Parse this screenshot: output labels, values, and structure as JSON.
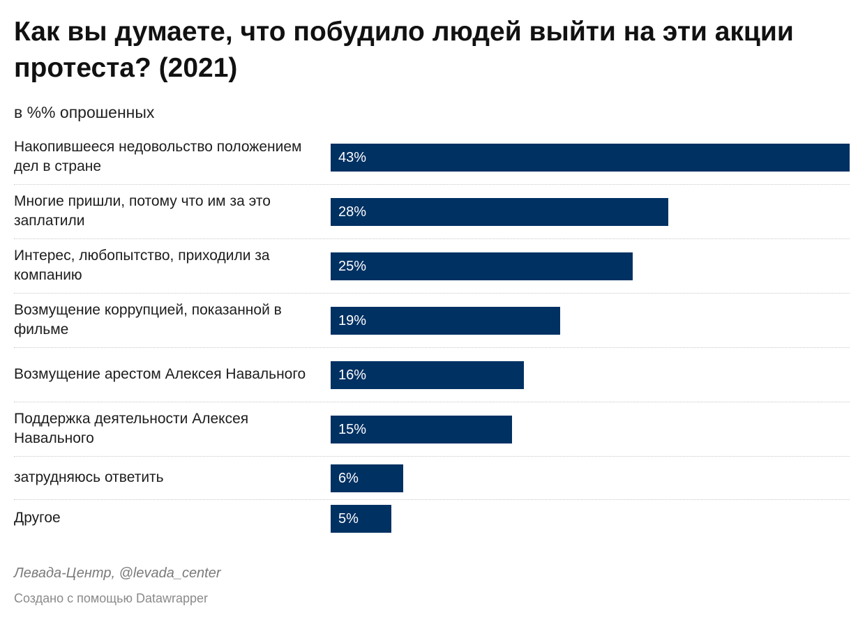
{
  "header": {
    "title": "Как вы думаете, что побудило людей выйти на эти акции протеста? (2021)",
    "subtitle": "в %% опрошенных"
  },
  "chart_data": {
    "type": "bar",
    "orientation": "horizontal",
    "categories": [
      "Накопившееся недовольство положением дел в стране",
      "Многие пришли, потому что им за это заплатили",
      "Интерес, любопытство, приходили за компанию",
      "Возмущение коррупцией, показанной в фильме",
      "Возмущение арестом Алексея Навального",
      "Поддержка деятельности Алексея Навального",
      "затрудняюсь ответить",
      "Другое"
    ],
    "values": [
      43,
      28,
      25,
      19,
      16,
      15,
      6,
      5
    ],
    "value_labels": [
      "43%",
      "28%",
      "25%",
      "19%",
      "16%",
      "15%",
      "6%",
      "5%"
    ],
    "xlim": [
      0,
      43
    ],
    "bar_color": "#003163",
    "value_label_color": "#ffffff"
  },
  "footer": {
    "source": "Левада-Центр, @levada_center",
    "credit": "Создано с помощью Datawrapper"
  }
}
